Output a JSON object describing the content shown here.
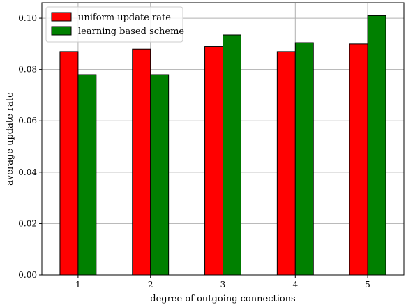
{
  "chart_data": {
    "type": "bar",
    "categories": [
      "1",
      "2",
      "3",
      "4",
      "5"
    ],
    "series": [
      {
        "name": "uniform update rate",
        "color": "#ff0000",
        "values": [
          0.087,
          0.088,
          0.089,
          0.087,
          0.09
        ]
      },
      {
        "name": "learning based scheme",
        "color": "#008000",
        "values": [
          0.078,
          0.078,
          0.0935,
          0.0905,
          0.101
        ]
      }
    ],
    "xlabel": "degree of outgoing connections",
    "ylabel": "average update rate",
    "ylim": [
      0,
      0.106
    ],
    "yticks": [
      "0.00",
      "0.02",
      "0.04",
      "0.06",
      "0.08",
      "0.10"
    ],
    "grid": true,
    "legend_position": "top-left"
  }
}
